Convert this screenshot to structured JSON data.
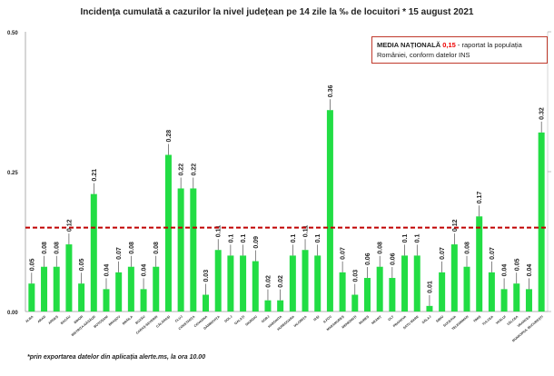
{
  "chart_data": {
    "type": "bar",
    "title": "Incidența cumulată a cazurilor la nivel județean pe 14 zile la ‰ de locuitori *  15 august 2021",
    "xlabel": "",
    "ylabel": "",
    "ylim": [
      0,
      0.5
    ],
    "yticks": [
      "0.00",
      "0.25",
      "0.50"
    ],
    "bar_color": "#22dd44",
    "reference_line": {
      "value": 0.15,
      "color": "#c00000",
      "style": "dashed"
    },
    "categories": [
      "ALBA",
      "ARAD",
      "ARGEȘ",
      "BACĂU",
      "BIHOR",
      "BISTRIȚA-NĂSĂUD",
      "BOTOȘANI",
      "BRAȘOV",
      "BRĂILA",
      "BUZĂU",
      "CARAȘ-SEVERIN",
      "CĂLĂRAȘI",
      "CLUJ",
      "CONSTANȚA",
      "COVASNA",
      "DÂMBOVIȚA",
      "DOLJ",
      "GALAȚI",
      "GIURGIU",
      "GORJ",
      "HARGHITA",
      "HUNEDOARA",
      "IALOMIȚA",
      "IAȘI",
      "ILFOV",
      "MARAMUREȘ",
      "MEHEDINȚI",
      "MUREȘ",
      "NEAMȚ",
      "OLT",
      "PRAHOVA",
      "SATU MARE",
      "SĂLAJ",
      "SIBIU",
      "SUCEAVA",
      "TELEORMAN",
      "TIMIȘ",
      "TULCEA",
      "VASLUI",
      "VÂLCEA",
      "VRANCEA",
      "MUNICIPIUL BUCUREȘTI"
    ],
    "values": [
      0.05,
      0.08,
      0.08,
      0.12,
      0.05,
      0.21,
      0.04,
      0.07,
      0.08,
      0.04,
      0.08,
      0.28,
      0.22,
      0.22,
      0.03,
      0.11,
      0.1,
      0.1,
      0.09,
      0.02,
      0.02,
      0.1,
      0.11,
      0.1,
      0.36,
      0.07,
      0.03,
      0.06,
      0.08,
      0.06,
      0.1,
      0.1,
      0.01,
      0.07,
      0.12,
      0.08,
      0.17,
      0.07,
      0.04,
      0.05,
      0.04,
      0.32
    ]
  },
  "legend": {
    "label": "MEDIA NAȚIONALĂ",
    "value": "0,15",
    "text": " - raportat la populația României, conform datelor INS"
  },
  "footnote": "*prin exportarea datelor din aplicația alerte.ms, la ora 10.00"
}
